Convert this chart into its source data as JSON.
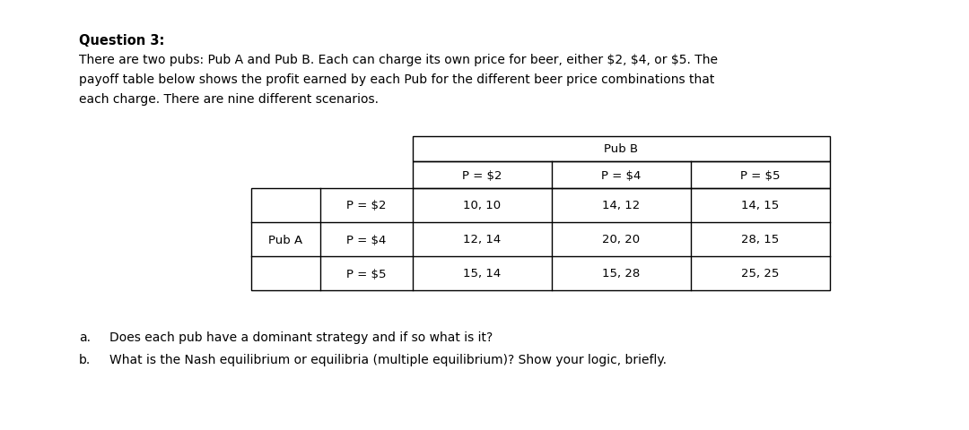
{
  "title": "Question 3:",
  "intro_lines": [
    "There are two pubs: Pub A and Pub B. Each can charge its own price for beer, either $2, $4, or $5. The",
    "payoff table below shows the profit earned by each Pub for the different beer price combinations that",
    "each charge. There are nine different scenarios."
  ],
  "pub_b_label": "Pub B",
  "pub_a_label": "Pub A",
  "col_headers": [
    "P = $2",
    "P = $4",
    "P = $5"
  ],
  "row_headers": [
    "P = $2",
    "P = $4",
    "P = $5"
  ],
  "table_data": [
    [
      "10, 10",
      "14, 12",
      "14, 15"
    ],
    [
      "12, 14",
      "20, 20",
      "28, 15"
    ],
    [
      "15, 14",
      "15, 28",
      "25, 25"
    ]
  ],
  "question_a_label": "a.",
  "question_b_label": "b.",
  "question_a": "Does each pub have a dominant strategy and if so what is it?",
  "question_b": "What is the Nash equilibrium or equilibria (multiple equilibrium)? Show your logic, briefly.",
  "bg_color": "#ffffff",
  "text_color": "#000000",
  "font_size_title": 10.5,
  "font_size_body": 10.0,
  "font_size_table": 9.5,
  "font_size_question": 10.0
}
